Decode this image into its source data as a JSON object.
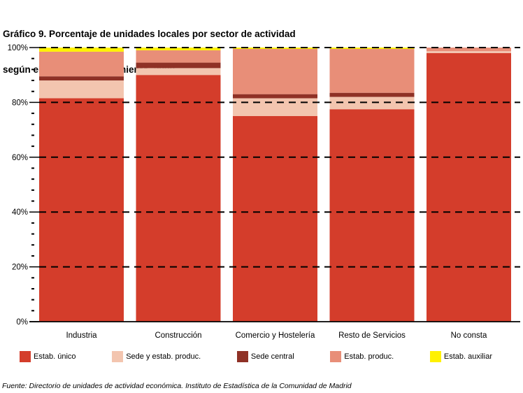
{
  "title": {
    "line1": "Gráfico 9. Porcentaje de unidades locales por sector de actividad",
    "line2": "según el tipo de establecimiento. 2008"
  },
  "footer": "Fuente: Directorio de unidades de actividad económica. Instituto de Estadística de la Comunidad de Madrid",
  "chart_data": {
    "type": "bar",
    "stacked": true,
    "units": "percent",
    "title": "Gráfico 9. Porcentaje de unidades locales por sector de actividad según el tipo de establecimiento. 2008",
    "categories": [
      "Industria",
      "Construcción",
      "Comercio y Hostelería",
      "Resto de Servicios",
      "No consta"
    ],
    "series": [
      {
        "name": "Estab. único",
        "color": "#D43D2B",
        "values": [
          81.5,
          90.0,
          75.0,
          77.5,
          98.0
        ]
      },
      {
        "name": "Sede y estab. produc.",
        "color": "#F3C5AF",
        "values": [
          6.5,
          2.5,
          6.5,
          4.5,
          0.7
        ]
      },
      {
        "name": "Sede central",
        "color": "#8F3126",
        "values": [
          1.5,
          2.0,
          1.5,
          1.5,
          0.0
        ]
      },
      {
        "name": "Estab. produc.",
        "color": "#E88E78",
        "values": [
          9.0,
          4.5,
          16.5,
          16.0,
          1.3
        ]
      },
      {
        "name": "Estab. auxiliar",
        "color": "#FFF100",
        "values": [
          1.5,
          1.0,
          0.5,
          0.5,
          0.0
        ]
      }
    ],
    "xlabel": "",
    "ylabel": "",
    "ylim": [
      0,
      100
    ],
    "yticks": [
      0,
      20,
      40,
      60,
      80,
      100
    ],
    "ytick_labels": [
      "0%",
      "20%",
      "40%",
      "60%",
      "80%",
      "100%"
    ],
    "minor_tick_step": 4,
    "gridlines": "dashed horizontal at major ticks, drawn over bars",
    "legend_position": "bottom"
  }
}
